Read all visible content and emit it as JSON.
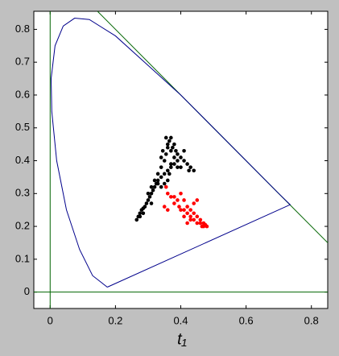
{
  "chart_data": {
    "type": "scatter",
    "xlabel": "t₁",
    "xlim": [
      -0.05,
      0.85
    ],
    "ylim": [
      -0.05,
      0.855
    ],
    "xticks": [
      0,
      0.2,
      0.4,
      0.6,
      0.8
    ],
    "yticks": [
      0,
      0.1,
      0.2,
      0.3,
      0.4,
      0.5,
      0.6,
      0.7,
      0.8
    ],
    "series": [
      {
        "mode": "line",
        "color": "#006400",
        "x": [
          0,
          0
        ],
        "y": [
          -0.05,
          0.855
        ]
      },
      {
        "mode": "line",
        "color": "#006400",
        "x": [
          -0.05,
          0.85
        ],
        "y": [
          0,
          0
        ]
      },
      {
        "mode": "line",
        "color": "#006400",
        "x": [
          0.145,
          0.85
        ],
        "y": [
          0.855,
          0.15
        ]
      },
      {
        "mode": "line",
        "color": "#00008b",
        "x": [
          0.175,
          0.13,
          0.09,
          0.05,
          0.02,
          0.005,
          0.003,
          0.015,
          0.04,
          0.075,
          0.12,
          0.2,
          0.3,
          0.4,
          0.5,
          0.6,
          0.7,
          0.735,
          0.175
        ],
        "y": [
          0.015,
          0.05,
          0.13,
          0.25,
          0.4,
          0.55,
          0.65,
          0.75,
          0.81,
          0.834,
          0.83,
          0.78,
          0.69,
          0.6,
          0.5,
          0.4,
          0.3,
          0.266,
          0.015
        ]
      },
      {
        "mode": "markers",
        "color": "#000000",
        "x": [
          0.265,
          0.27,
          0.275,
          0.28,
          0.285,
          0.29,
          0.295,
          0.3,
          0.305,
          0.31,
          0.315,
          0.32,
          0.325,
          0.33,
          0.3,
          0.31,
          0.32,
          0.33,
          0.34,
          0.35,
          0.355,
          0.36,
          0.365,
          0.37,
          0.355,
          0.36,
          0.37,
          0.38,
          0.375,
          0.38,
          0.385,
          0.39,
          0.4,
          0.41,
          0.42,
          0.43,
          0.44,
          0.425,
          0.35,
          0.36,
          0.37,
          0.38,
          0.39,
          0.34,
          0.33,
          0.34,
          0.35,
          0.36,
          0.365,
          0.31,
          0.285,
          0.275,
          0.37,
          0.345,
          0.34,
          0.41,
          0.4,
          0.39
        ],
        "y": [
          0.22,
          0.23,
          0.24,
          0.25,
          0.255,
          0.26,
          0.27,
          0.28,
          0.29,
          0.3,
          0.31,
          0.32,
          0.33,
          0.34,
          0.3,
          0.32,
          0.34,
          0.36,
          0.38,
          0.4,
          0.42,
          0.44,
          0.46,
          0.47,
          0.47,
          0.45,
          0.43,
          0.41,
          0.44,
          0.45,
          0.43,
          0.42,
          0.41,
          0.4,
          0.39,
          0.38,
          0.37,
          0.37,
          0.36,
          0.37,
          0.38,
          0.39,
          0.38,
          0.35,
          0.33,
          0.32,
          0.33,
          0.34,
          0.36,
          0.27,
          0.24,
          0.23,
          0.39,
          0.43,
          0.41,
          0.43,
          0.38,
          0.4
        ]
      },
      {
        "mode": "markers",
        "color": "#ff0000",
        "x": [
          0.355,
          0.36,
          0.37,
          0.38,
          0.39,
          0.395,
          0.38,
          0.4,
          0.41,
          0.42,
          0.43,
          0.44,
          0.45,
          0.46,
          0.47,
          0.48,
          0.47,
          0.46,
          0.45,
          0.44,
          0.43,
          0.44,
          0.45,
          0.42,
          0.41,
          0.42,
          0.43,
          0.35,
          0.36,
          0.475,
          0.465,
          0.4,
          0.41
        ],
        "y": [
          0.32,
          0.3,
          0.29,
          0.29,
          0.28,
          0.26,
          0.27,
          0.25,
          0.25,
          0.24,
          0.23,
          0.22,
          0.21,
          0.21,
          0.2,
          0.2,
          0.21,
          0.22,
          0.23,
          0.24,
          0.25,
          0.27,
          0.28,
          0.26,
          0.23,
          0.21,
          0.22,
          0.26,
          0.25,
          0.205,
          0.2,
          0.3,
          0.28
        ]
      }
    ]
  }
}
